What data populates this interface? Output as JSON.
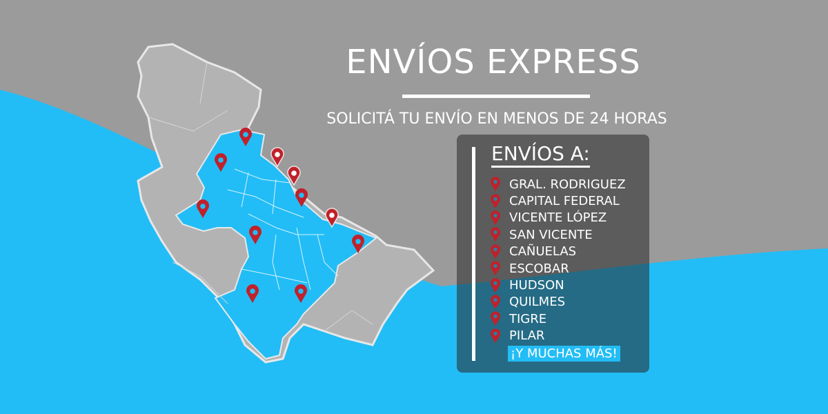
{
  "header": {
    "title": "ENVÍOS EXPRESS",
    "subtitle": "SOLICITÁ TU ENVÍO EN MENOS DE 24 HORAS"
  },
  "panel": {
    "title": "ENVÍOS A:",
    "items": [
      "GRAL. RODRIGUEZ",
      "CAPITAL FEDERAL",
      "VICENTE LÓPEZ",
      "SAN VICENTE",
      "CAÑUELAS",
      "ESCOBAR",
      "HUDSON",
      "QUILMES",
      "TIGRE",
      "PILAR"
    ],
    "more": "¡Y MUCHAS MÁS!"
  },
  "map": {
    "pin_icon": "map-pin-icon",
    "pin_count": 11
  },
  "colors": {
    "blue": "#22bdf6",
    "gray": "#9b9b9b",
    "map_gray": "#b3b3b3",
    "pin_red": "#c0212a"
  }
}
